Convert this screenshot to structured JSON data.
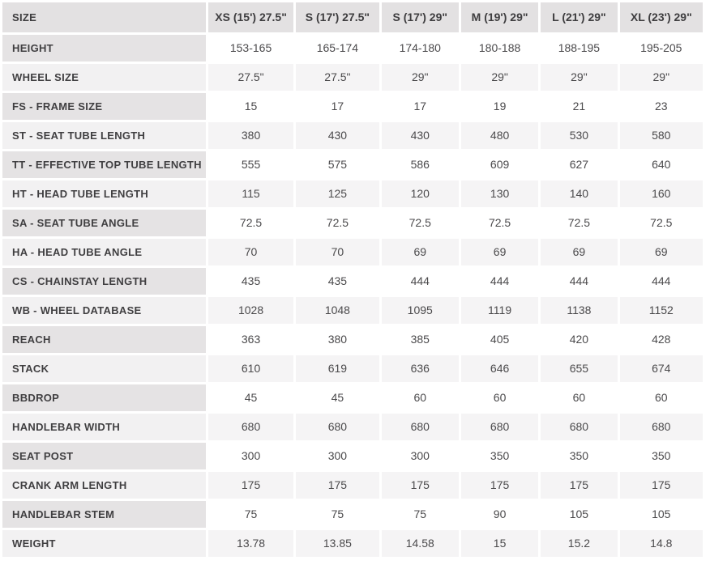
{
  "colors": {
    "header_bg": "#e3e1e2",
    "label_odd_bg": "#e5e3e4",
    "label_even_bg": "#f2f1f2",
    "row_odd_bg": "#ffffff",
    "row_even_bg": "#f5f4f5",
    "header_text": "#3e3d3f",
    "label_text": "#403f41",
    "value_text": "#4b4a4c"
  },
  "chart_data": {
    "type": "table",
    "corner_label": "SIZE",
    "columns": [
      "XS (15') 27.5\"",
      "S (17') 27.5\"",
      "S (17') 29\"",
      "M (19') 29\"",
      "L (21') 29\"",
      "XL (23') 29\""
    ],
    "rows": [
      {
        "label": "HEIGHT",
        "values": [
          "153-165",
          "165-174",
          "174-180",
          "180-188",
          "188-195",
          "195-205"
        ]
      },
      {
        "label": "WHEEL SIZE",
        "values": [
          "27.5\"",
          "27.5\"",
          "29\"",
          "29\"",
          "29\"",
          "29\""
        ]
      },
      {
        "label": "FS - FRAME SIZE",
        "values": [
          "15",
          "17",
          "17",
          "19",
          "21",
          "23"
        ]
      },
      {
        "label": "ST - SEAT TUBE LENGTH",
        "values": [
          "380",
          "430",
          "430",
          "480",
          "530",
          "580"
        ]
      },
      {
        "label": "TT - EFFECTIVE TOP TUBE LENGTH",
        "values": [
          "555",
          "575",
          "586",
          "609",
          "627",
          "640"
        ]
      },
      {
        "label": "HT - HEAD TUBE LENGTH",
        "values": [
          "115",
          "125",
          "120",
          "130",
          "140",
          "160"
        ]
      },
      {
        "label": "SA - SEAT TUBE ANGLE",
        "values": [
          "72.5",
          "72.5",
          "72.5",
          "72.5",
          "72.5",
          "72.5"
        ]
      },
      {
        "label": "HA - HEAD TUBE ANGLE",
        "values": [
          "70",
          "70",
          "69",
          "69",
          "69",
          "69"
        ]
      },
      {
        "label": "CS - CHAINSTAY LENGTH",
        "values": [
          "435",
          "435",
          "444",
          "444",
          "444",
          "444"
        ]
      },
      {
        "label": "WB - WHEEL DATABASE",
        "values": [
          "1028",
          "1048",
          "1095",
          "1119",
          "1138",
          "1152"
        ]
      },
      {
        "label": "REACH",
        "values": [
          "363",
          "380",
          "385",
          "405",
          "420",
          "428"
        ]
      },
      {
        "label": "STACK",
        "values": [
          "610",
          "619",
          "636",
          "646",
          "655",
          "674"
        ]
      },
      {
        "label": "BBDROP",
        "values": [
          "45",
          "45",
          "60",
          "60",
          "60",
          "60"
        ]
      },
      {
        "label": "HANDLEBAR WIDTH",
        "values": [
          "680",
          "680",
          "680",
          "680",
          "680",
          "680"
        ]
      },
      {
        "label": "SEAT POST",
        "values": [
          "300",
          "300",
          "300",
          "350",
          "350",
          "350"
        ]
      },
      {
        "label": "CRANK ARM LENGTH",
        "values": [
          "175",
          "175",
          "175",
          "175",
          "175",
          "175"
        ]
      },
      {
        "label": "HANDLEBAR STEM",
        "values": [
          "75",
          "75",
          "75",
          "90",
          "105",
          "105"
        ]
      },
      {
        "label": "WEIGHT",
        "values": [
          "13.78",
          "13.85",
          "14.58",
          "15",
          "15.2",
          "14.8"
        ]
      }
    ]
  }
}
